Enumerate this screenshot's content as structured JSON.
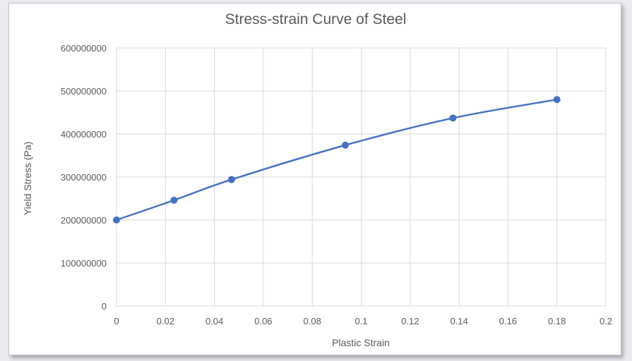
{
  "chart_data": {
    "type": "scatter",
    "title": "Stress-strain Curve of Steel",
    "xlabel": "Plastic Strain",
    "ylabel": "Yield Stress (Pa)",
    "xlim": [
      0,
      0.2
    ],
    "ylim": [
      0,
      600000000
    ],
    "x_ticks": [
      "0",
      "0.02",
      "0.04",
      "0.06",
      "0.08",
      "0.1",
      "0.12",
      "0.14",
      "0.16",
      "0.18",
      "0.2"
    ],
    "y_ticks": [
      "0",
      "100000000",
      "200000000",
      "300000000",
      "400000000",
      "500000000",
      "600000000"
    ],
    "grid": true,
    "legend": "none",
    "line_style": "smooth",
    "series": [
      {
        "color": "#4472c4",
        "x": [
          0,
          0.0235,
          0.047,
          0.0935,
          0.1375,
          0.18
        ],
        "y": [
          200000000,
          246000000,
          294000000,
          374000000,
          437000000,
          480000000
        ]
      }
    ]
  }
}
